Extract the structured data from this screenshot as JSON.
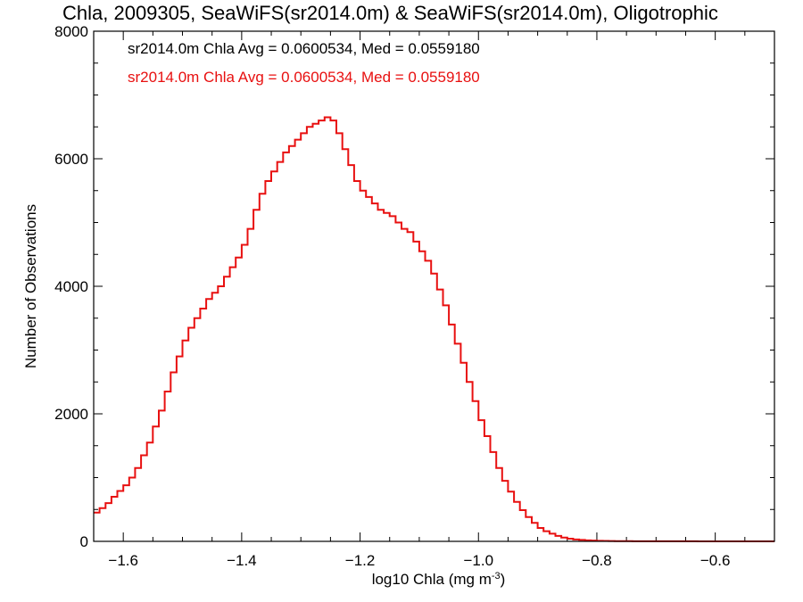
{
  "chart_data": {
    "type": "line",
    "title": "Chla, 2009305, SeaWiFS(sr2014.0m) & SeaWiFS(sr2014.0m), Oligotrophic",
    "xlabel": "log10 Chla (mg m",
    "xlabel_superscript": "-3",
    "xlabel_suffix": ")",
    "ylabel": "Number of Observations",
    "xlim": [
      -1.65,
      -0.5
    ],
    "ylim": [
      0,
      8000
    ],
    "x_ticks": [
      -1.6,
      -1.4,
      -1.2,
      -1.0,
      -0.8,
      -0.6
    ],
    "x_tick_labels": [
      "−1.6",
      "−1.4",
      "−1.2",
      "−1.0",
      "−0.8",
      "−0.6"
    ],
    "y_ticks": [
      0,
      2000,
      4000,
      6000,
      8000
    ],
    "y_tick_labels": [
      "0",
      "2000",
      "4000",
      "6000",
      "8000"
    ],
    "grid": false,
    "step": true,
    "annotations": [
      {
        "text": "sr2014.0m Chla Avg = 0.0600534, Med = 0.0559180",
        "color": "#000000"
      },
      {
        "text": "sr2014.0m Chla Avg = 0.0600534, Med = 0.0559180",
        "color": "#e81010"
      }
    ],
    "series": [
      {
        "name": "",
        "color": "#e81010",
        "x": [
          -1.65,
          -1.64,
          -1.63,
          -1.62,
          -1.61,
          -1.6,
          -1.59,
          -1.58,
          -1.57,
          -1.56,
          -1.55,
          -1.54,
          -1.53,
          -1.52,
          -1.51,
          -1.5,
          -1.49,
          -1.48,
          -1.47,
          -1.46,
          -1.45,
          -1.44,
          -1.43,
          -1.42,
          -1.41,
          -1.4,
          -1.39,
          -1.38,
          -1.37,
          -1.36,
          -1.35,
          -1.34,
          -1.33,
          -1.32,
          -1.31,
          -1.3,
          -1.29,
          -1.28,
          -1.27,
          -1.26,
          -1.25,
          -1.24,
          -1.23,
          -1.22,
          -1.21,
          -1.2,
          -1.19,
          -1.18,
          -1.17,
          -1.16,
          -1.15,
          -1.14,
          -1.13,
          -1.12,
          -1.11,
          -1.1,
          -1.09,
          -1.08,
          -1.07,
          -1.06,
          -1.05,
          -1.04,
          -1.03,
          -1.02,
          -1.01,
          -1.0,
          -0.99,
          -0.98,
          -0.97,
          -0.96,
          -0.95,
          -0.94,
          -0.93,
          -0.92,
          -0.91,
          -0.9,
          -0.89,
          -0.88,
          -0.87,
          -0.86,
          -0.85,
          -0.84,
          -0.83,
          -0.82,
          -0.81,
          -0.8,
          -0.79,
          -0.78,
          -0.77,
          -0.76,
          -0.75,
          -0.74,
          -0.73,
          -0.72,
          -0.71,
          -0.7,
          -0.69,
          -0.68,
          -0.67,
          -0.66,
          -0.65,
          -0.64,
          -0.63,
          -0.62,
          -0.61,
          -0.6,
          -0.59,
          -0.58,
          -0.57,
          -0.56,
          -0.55,
          -0.54,
          -0.53,
          -0.52,
          -0.51,
          -0.5
        ],
        "y": [
          450,
          520,
          600,
          700,
          790,
          880,
          1000,
          1150,
          1350,
          1550,
          1800,
          2050,
          2350,
          2650,
          2900,
          3150,
          3350,
          3500,
          3650,
          3800,
          3900,
          4000,
          4150,
          4300,
          4450,
          4650,
          4900,
          5200,
          5450,
          5650,
          5800,
          5950,
          6100,
          6200,
          6300,
          6400,
          6500,
          6550,
          6600,
          6650,
          6600,
          6400,
          6150,
          5900,
          5650,
          5500,
          5400,
          5300,
          5200,
          5150,
          5100,
          5000,
          4900,
          4850,
          4700,
          4550,
          4400,
          4200,
          3950,
          3700,
          3400,
          3100,
          2800,
          2500,
          2200,
          1900,
          1650,
          1400,
          1150,
          950,
          780,
          620,
          490,
          380,
          290,
          210,
          160,
          120,
          85,
          60,
          42,
          30,
          22,
          16,
          12,
          9,
          7,
          5,
          4,
          3,
          3,
          2,
          2,
          2,
          1,
          1,
          1,
          1,
          1,
          1,
          1,
          1,
          0,
          0,
          0,
          0,
          0,
          0,
          0,
          0,
          0,
          0,
          0,
          0,
          0,
          0
        ]
      }
    ]
  }
}
